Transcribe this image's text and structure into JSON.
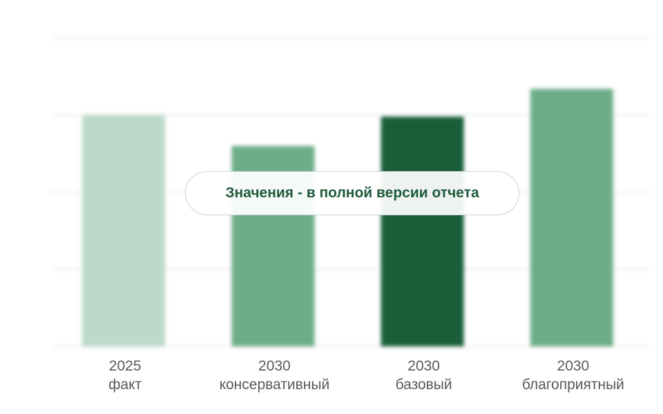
{
  "chart_data": {
    "type": "bar",
    "categories": [
      {
        "year": "2025",
        "scenario": "факт"
      },
      {
        "year": "2030",
        "scenario": "консервативный"
      },
      {
        "year": "2030",
        "scenario": "базовый"
      },
      {
        "year": "2030",
        "scenario": "благоприятный"
      }
    ],
    "values": [
      1.5,
      1.3,
      1.49,
      1.67
    ],
    "bar_colors": [
      "#bcdac9",
      "#6dae89",
      "#1a5e39",
      "#6dae89"
    ],
    "ylim": [
      0,
      2.0
    ],
    "grid": true,
    "title": "",
    "xlabel": "",
    "ylabel": ""
  },
  "overlay": {
    "text": "Значения - в полной версии отчета"
  },
  "colors": {
    "grid": "#e9ecea",
    "label": "#555b58",
    "overlay_text": "#1f5a3a"
  }
}
